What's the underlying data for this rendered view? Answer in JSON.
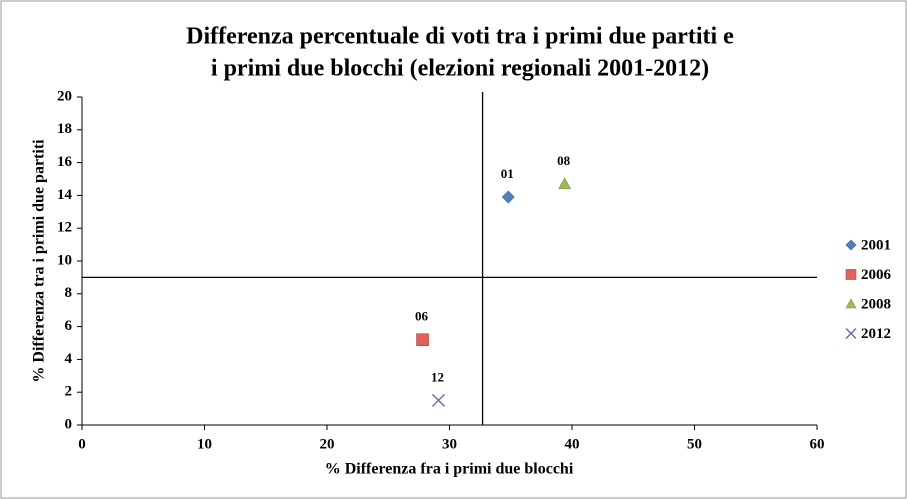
{
  "chart_data": {
    "type": "scatter",
    "title": [
      "Differenza percentuale di voti tra i primi due partiti e",
      "i primi due blocchi (elezioni regionali 2001-2012)"
    ],
    "x_label": "% Differenza fra i primi due blocchi",
    "y_label": "% Differenza tra i primi due partiti",
    "xlim": [
      0,
      60
    ],
    "xticks": [
      0,
      10,
      20,
      30,
      40,
      50,
      60
    ],
    "ylim": [
      0,
      20
    ],
    "yticks": [
      0,
      2,
      4,
      6,
      8,
      10,
      12,
      14,
      16,
      18,
      20
    ],
    "reference_lines": {
      "x": 32.7,
      "y": 9
    },
    "legend": "right",
    "series": [
      {
        "name": "2001",
        "color": "#4f81bd",
        "marker": "diamond",
        "x": [
          34.8
        ],
        "values": [
          13.9
        ],
        "labels": [
          "01"
        ]
      },
      {
        "name": "2006",
        "color": "#e0625f",
        "marker": "square",
        "x": [
          27.8
        ],
        "values": [
          5.2
        ],
        "labels": [
          "06"
        ]
      },
      {
        "name": "2008",
        "color": "#9bbb59",
        "marker": "triangle",
        "x": [
          39.4
        ],
        "values": [
          14.7
        ],
        "labels": [
          "08"
        ]
      },
      {
        "name": "2012",
        "color": "#8064a2",
        "marker": "x",
        "x": [
          29.1
        ],
        "values": [
          1.5
        ],
        "labels": [
          "12"
        ]
      }
    ]
  }
}
